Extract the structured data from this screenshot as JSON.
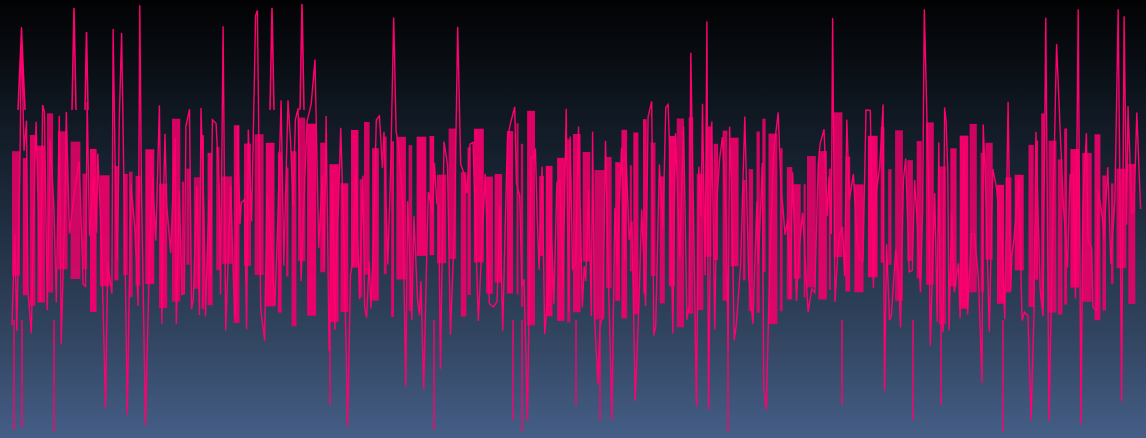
{
  "art": {
    "icon": "distorted-text-squiggle",
    "stroke_color": "#ff006f",
    "fill_color": "#ef006b"
  }
}
